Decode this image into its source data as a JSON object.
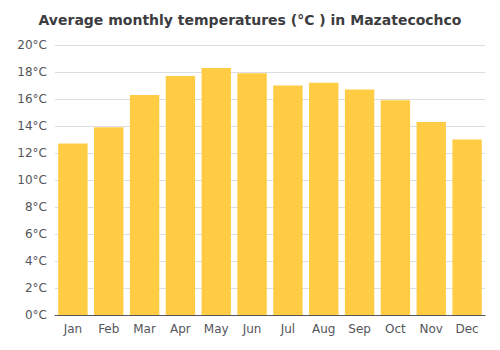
{
  "chart_data": {
    "type": "bar",
    "title": "Average monthly temperatures (°C ) in Mazatecochco",
    "categories": [
      "Jan",
      "Feb",
      "Mar",
      "Apr",
      "May",
      "Jun",
      "Jul",
      "Aug",
      "Sep",
      "Oct",
      "Nov",
      "Dec"
    ],
    "values": [
      12.7,
      13.9,
      16.3,
      17.7,
      18.3,
      17.9,
      17.0,
      17.2,
      16.7,
      15.9,
      14.3,
      13.0
    ],
    "color": "#FFCC44",
    "ylim": [
      0,
      20
    ],
    "yticks": [
      {
        "value": 0,
        "label": "0°C"
      },
      {
        "value": 2,
        "label": "2°C"
      },
      {
        "value": 4,
        "label": "4°C"
      },
      {
        "value": 6,
        "label": "6°C"
      },
      {
        "value": 8,
        "label": "8°C"
      },
      {
        "value": 10,
        "label": "10°C"
      },
      {
        "value": 12,
        "label": "12°C"
      },
      {
        "value": 14,
        "label": "14°C"
      },
      {
        "value": 16,
        "label": "16°C"
      },
      {
        "value": 18,
        "label": "18°C"
      },
      {
        "value": 20,
        "label": "20°C"
      }
    ],
    "grid": true
  }
}
